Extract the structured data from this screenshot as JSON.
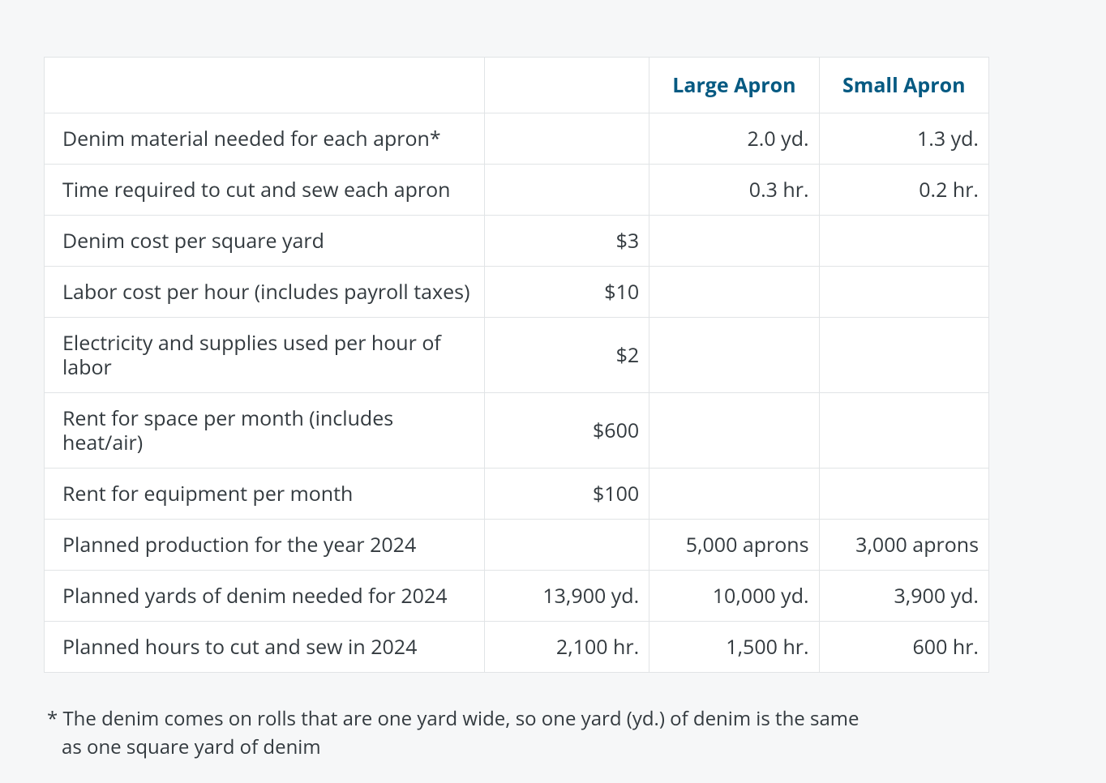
{
  "table": {
    "header": {
      "col1": "",
      "col2": "",
      "col3": "Large Apron",
      "col4": "Small Apron"
    },
    "header_color": "#065a82",
    "border_color": "#e1e4e6",
    "background": "#ffffff",
    "font_size_pt": 19,
    "rows": [
      {
        "label": "Denim material needed for each apron*",
        "c2": "",
        "c3": "2.0 yd.",
        "c4": "1.3 yd."
      },
      {
        "label": "Time required to cut and sew each apron",
        "c2": "",
        "c3": "0.3 hr.",
        "c4": "0.2 hr."
      },
      {
        "label": "Denim cost per square yard",
        "c2": "$3",
        "c3": "",
        "c4": ""
      },
      {
        "label": "Labor cost per hour (includes payroll taxes)",
        "c2": "$10",
        "c3": "",
        "c4": ""
      },
      {
        "label": "Electricity and supplies used per hour of labor",
        "c2": "$2",
        "c3": "",
        "c4": ""
      },
      {
        "label": "Rent for space per month (includes heat/air)",
        "c2": "$600",
        "c3": "",
        "c4": ""
      },
      {
        "label": "Rent for equipment per month",
        "c2": "$100",
        "c3": "",
        "c4": ""
      },
      {
        "label": "Planned production for the year 2024",
        "c2": "",
        "c3": "5,000 aprons",
        "c4": "3,000 aprons"
      },
      {
        "label": "Planned yards of denim needed for 2024",
        "c2": "13,900 yd.",
        "c3": "10,000 yd.",
        "c4": "3,900 yd."
      },
      {
        "label": "Planned hours to cut and sew in 2024",
        "c2": "2,100 hr.",
        "c3": "1,500 hr.",
        "c4": "600 hr."
      }
    ]
  },
  "footnote": "* The denim comes on rolls that are one yard wide, so one yard (yd.) of denim is the same as one square yard of denim",
  "page_background": "#f6f7f8"
}
